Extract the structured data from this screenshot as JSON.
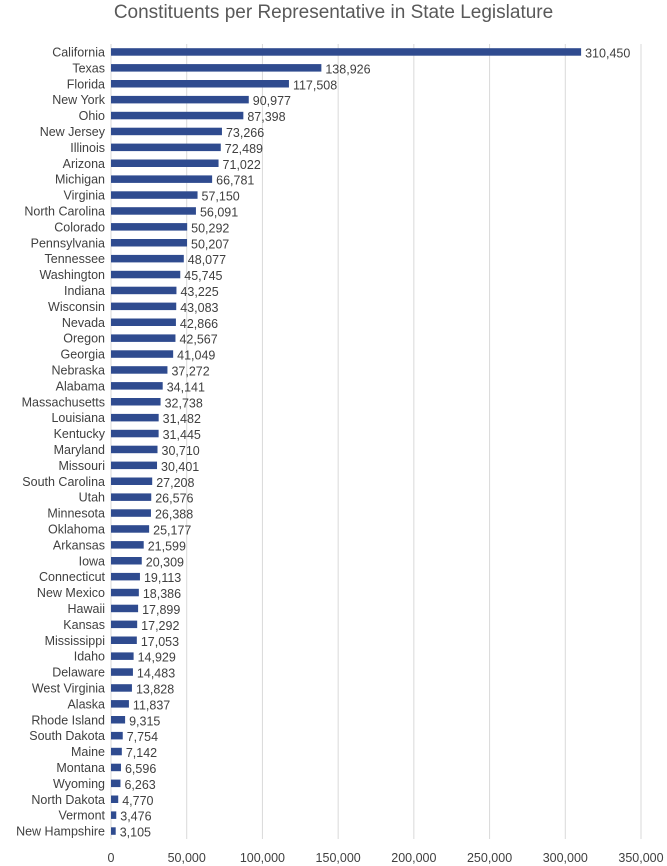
{
  "chart_data": {
    "type": "bar",
    "orientation": "horizontal",
    "title": "Constituents per Representative in State Legislature",
    "xlabel": "",
    "ylabel": "",
    "xlim": [
      0,
      350000
    ],
    "x_ticks": [
      0,
      50000,
      100000,
      150000,
      200000,
      250000,
      300000,
      350000
    ],
    "x_tick_labels": [
      "0",
      "50,000",
      "100,000",
      "150,000",
      "200,000",
      "250,000",
      "300,000",
      "350,000"
    ],
    "grid": "vertical",
    "legend": "none",
    "bar_color": "#2F4B8F",
    "categories": [
      "California",
      "Texas",
      "Florida",
      "New York",
      "Ohio",
      "New Jersey",
      "Illinois",
      "Arizona",
      "Michigan",
      "Virginia",
      "North Carolina",
      "Colorado",
      "Pennsylvania",
      "Tennessee",
      "Washington",
      "Indiana",
      "Wisconsin",
      "Nevada",
      "Oregon",
      "Georgia",
      "Nebraska",
      "Alabama",
      "Massachusetts",
      "Louisiana",
      "Kentucky",
      "Maryland",
      "Missouri",
      "South Carolina",
      "Utah",
      "Minnesota",
      "Oklahoma",
      "Arkansas",
      "Iowa",
      "Connecticut",
      "New Mexico",
      "Hawaii",
      "Kansas",
      "Mississippi",
      "Idaho",
      "Delaware",
      "West Virginia",
      "Alaska",
      "Rhode Island",
      "South Dakota",
      "Maine",
      "Montana",
      "Wyoming",
      "North Dakota",
      "Vermont",
      "New Hampshire"
    ],
    "values": [
      310450,
      138926,
      117508,
      90977,
      87398,
      73266,
      72489,
      71022,
      66781,
      57150,
      56091,
      50292,
      50207,
      48077,
      45745,
      43225,
      43083,
      42866,
      42567,
      41049,
      37272,
      34141,
      32738,
      31482,
      31445,
      30710,
      30401,
      27208,
      26576,
      26388,
      25177,
      21599,
      20309,
      19113,
      18386,
      17899,
      17292,
      17053,
      14929,
      14483,
      13828,
      11837,
      9315,
      7754,
      7142,
      6596,
      6263,
      4770,
      3476,
      3105
    ],
    "value_labels": [
      "310,450",
      "138,926",
      "117,508",
      "90,977",
      "87,398",
      "73,266",
      "72,489",
      "71,022",
      "66,781",
      "57,150",
      "56,091",
      "50,292",
      "50,207",
      "48,077",
      "45,745",
      "43,225",
      "43,083",
      "42,866",
      "42,567",
      "41,049",
      "37,272",
      "34,141",
      "32,738",
      "31,482",
      "31,445",
      "30,710",
      "30,401",
      "27,208",
      "26,576",
      "26,388",
      "25,177",
      "21,599",
      "20,309",
      "19,113",
      "18,386",
      "17,899",
      "17,292",
      "17,053",
      "14,929",
      "14,483",
      "13,828",
      "11,837",
      "9,315",
      "7,754",
      "7,142",
      "6,596",
      "6,263",
      "4,770",
      "3,476",
      "3,105"
    ]
  }
}
